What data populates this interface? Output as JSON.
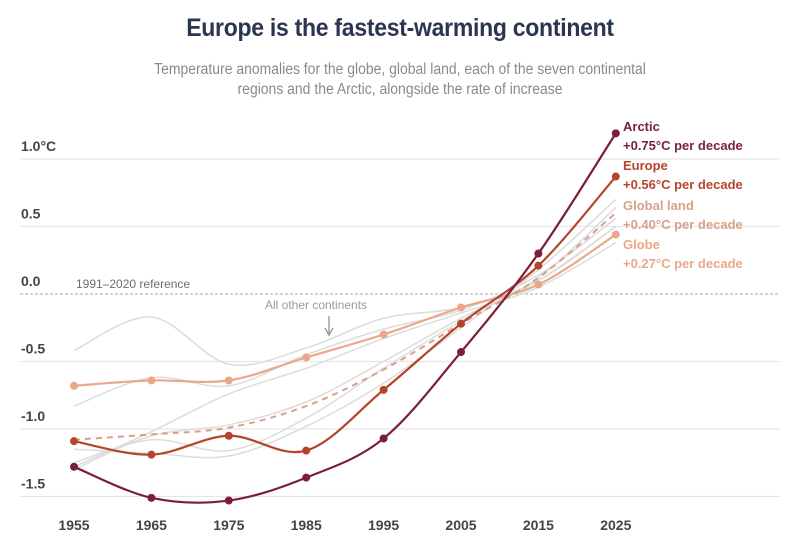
{
  "title": "Europe is the fastest-warming continent",
  "subtitle": "Temperature anomalies for the globe, global land, each of the seven continental regions and the Arctic, alongside the rate of increase",
  "chart_data": {
    "type": "line",
    "title": "Europe is the fastest-warming continent",
    "subtitle": "Temperature anomalies for the globe, global land, each of the seven continental regions and the Arctic, alongside the rate of increase",
    "xlabel": "",
    "ylabel": "°C",
    "x": [
      1955,
      1965,
      1975,
      1985,
      1995,
      2005,
      2015,
      2025
    ],
    "xlim": [
      1955,
      2025
    ],
    "ylim": [
      -1.6,
      1.2
    ],
    "yticks": [
      1.0,
      0.5,
      0.0,
      -0.5,
      -1.0,
      -1.5
    ],
    "ytick_labels": [
      "1.0°C",
      "0.5",
      "0.0",
      "-0.5",
      "-1.0",
      "-1.5"
    ],
    "xtick_labels": [
      "1955",
      "1965",
      "1975",
      "1985",
      "1995",
      "2005",
      "2015",
      "2025"
    ],
    "grid": true,
    "reference_label": "1991–2020 reference",
    "annotation": "All other continents",
    "legend_position": "right (direct labels)",
    "series": [
      {
        "name": "Arctic",
        "rate": "+0.75°C per decade",
        "color": "#7a1f3a",
        "style": "solid",
        "markers": true,
        "values": [
          -1.28,
          -1.51,
          -1.53,
          -1.36,
          -1.07,
          -0.43,
          0.3,
          1.19
        ]
      },
      {
        "name": "Europe",
        "rate": "+0.56°C per decade",
        "color": "#b5452a",
        "style": "solid",
        "markers": true,
        "values": [
          -1.09,
          -1.19,
          -1.05,
          -1.16,
          -0.71,
          -0.22,
          0.21,
          0.87
        ]
      },
      {
        "name": "Global land",
        "rate": "+0.40°C per decade",
        "color": "#d9a08a",
        "style": "dashed",
        "markers": false,
        "values": [
          -1.08,
          -1.04,
          -0.99,
          -0.83,
          -0.56,
          -0.22,
          0.12,
          0.6
        ]
      },
      {
        "name": "Globe",
        "rate": "+0.27°C per decade",
        "color": "#eba78a",
        "style": "solid",
        "markers": true,
        "values": [
          -0.68,
          -0.64,
          -0.64,
          -0.47,
          -0.3,
          -0.1,
          0.07,
          0.44
        ]
      }
    ],
    "other_continents": [
      {
        "name": "Other continent 1",
        "values": [
          -0.42,
          -0.17,
          -0.52,
          -0.4,
          -0.18,
          -0.1,
          0.1,
          0.5
        ]
      },
      {
        "name": "Other continent 2",
        "values": [
          -0.83,
          -0.62,
          -0.68,
          -0.45,
          -0.26,
          -0.12,
          0.14,
          0.56
        ]
      },
      {
        "name": "Other continent 3",
        "values": [
          -1.28,
          -1.02,
          -0.74,
          -0.55,
          -0.33,
          -0.14,
          0.05,
          0.38
        ]
      },
      {
        "name": "Other continent 4",
        "values": [
          -1.25,
          -1.08,
          -1.16,
          -0.92,
          -0.55,
          -0.2,
          0.12,
          0.64
        ]
      },
      {
        "name": "Other continent 5",
        "values": [
          -1.15,
          -1.18,
          -1.2,
          -0.98,
          -0.66,
          -0.25,
          0.18,
          0.7
        ]
      },
      {
        "name": "Other continent 6",
        "values": [
          -1.3,
          -1.05,
          -0.97,
          -0.8,
          -0.5,
          -0.18,
          0.1,
          0.5
        ]
      }
    ]
  }
}
